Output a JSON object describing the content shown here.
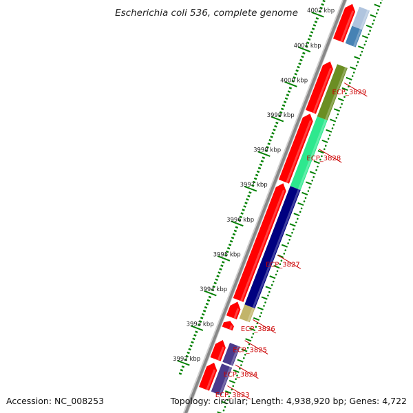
{
  "title": "Escherichia coli 536, complete genome",
  "footer": {
    "accession": "Accession: NC_008253",
    "info": "Topology: circular; Length: 4,938,920 bp; Genes: 4,722"
  },
  "colors": {
    "cds": "#ff0000",
    "tick": "#008000",
    "label": "#cc0000",
    "backbone": "#888888"
  },
  "scale_labels": [
    {
      "kbp": 3992,
      "label": "3992 kbp"
    },
    {
      "kbp": 3993,
      "label": "3993 kbp"
    },
    {
      "kbp": 3994,
      "label": "3994 kbp"
    },
    {
      "kbp": 3995,
      "label": "3995 kbp"
    },
    {
      "kbp": 3996,
      "label": "3996 kbp"
    },
    {
      "kbp": 3997,
      "label": "3997 kbp"
    },
    {
      "kbp": 3998,
      "label": "3998 kbp"
    },
    {
      "kbp": 3999,
      "label": "3999 kbp"
    },
    {
      "kbp": 4000,
      "label": "4000 kbp"
    },
    {
      "kbp": 4001,
      "label": "4001 kbp"
    },
    {
      "kbp": 4002,
      "label": "4002 kbp"
    }
  ],
  "gene_labels": [
    {
      "name": "ECP_3823",
      "kbp": 3991.85
    },
    {
      "name": "ECP_3824",
      "kbp": 3992.45
    },
    {
      "name": "ECP_3825",
      "kbp": 3993.15
    },
    {
      "name": "ECP_3826",
      "kbp": 3993.75
    },
    {
      "name": "ECP_3827",
      "kbp": 3995.6
    },
    {
      "name": "ECP_3828",
      "kbp": 3998.65
    },
    {
      "name": "ECP_3829",
      "kbp": 4000.55
    }
  ],
  "feature_blocks": [
    {
      "start_kbp": 3991.55,
      "end_kbp": 3992.35,
      "color": "#4a3b8c"
    },
    {
      "start_kbp": 3992.4,
      "end_kbp": 3992.95,
      "color": "#4a3b8c"
    },
    {
      "start_kbp": 3993.65,
      "end_kbp": 3994.05,
      "color": "#c2b46a"
    },
    {
      "start_kbp": 3994.05,
      "end_kbp": 3997.45,
      "color": "#000080"
    },
    {
      "start_kbp": 3997.45,
      "end_kbp": 3999.45,
      "color": "#2ee88e"
    },
    {
      "start_kbp": 3999.45,
      "end_kbp": 4000.95,
      "color": "#6b8e23"
    },
    {
      "start_kbp": 4001.55,
      "end_kbp": 4002.05,
      "color": "#4682b4"
    },
    {
      "start_kbp": 4002.05,
      "end_kbp": 4002.6,
      "color": "#b0c4de"
    }
  ],
  "cds_features": [
    {
      "start_kbp": 3991.55,
      "end_kbp": 3992.3
    },
    {
      "start_kbp": 3992.4,
      "end_kbp": 3992.95
    },
    {
      "start_kbp": 3993.28,
      "end_kbp": 3993.5
    },
    {
      "start_kbp": 3993.6,
      "end_kbp": 3994.05
    },
    {
      "start_kbp": 3994.1,
      "end_kbp": 3997.45
    },
    {
      "start_kbp": 3997.5,
      "end_kbp": 3999.45
    },
    {
      "start_kbp": 3999.5,
      "end_kbp": 4000.95
    },
    {
      "start_kbp": 4001.55,
      "end_kbp": 4002.6
    }
  ]
}
